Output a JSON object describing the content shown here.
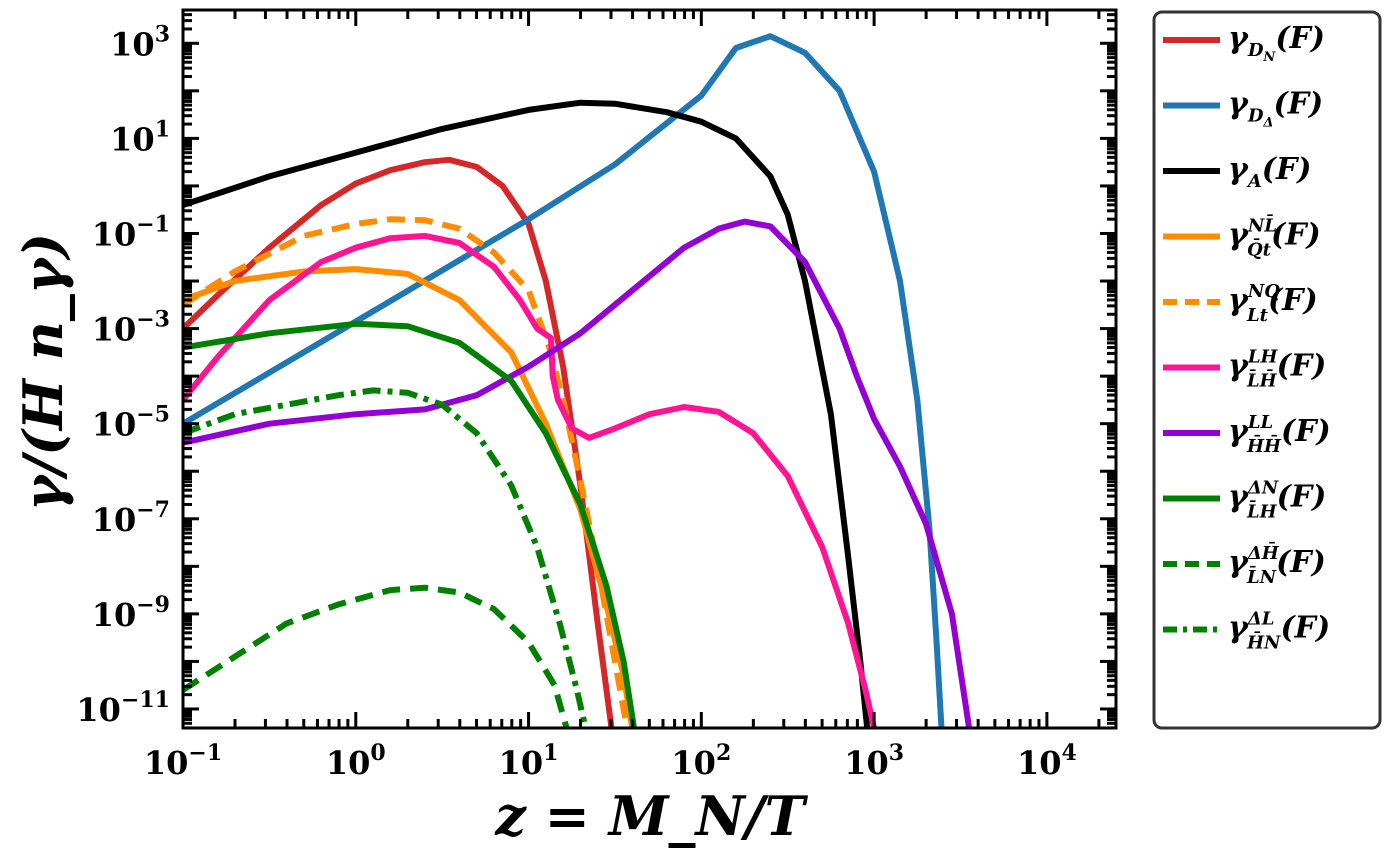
{
  "chart_data": {
    "type": "line",
    "title": "",
    "xlabel": "z = M_N/T",
    "ylabel": "γ/(H n_γ)",
    "xscale": "log",
    "yscale": "log",
    "xlim_log10": [
      -1,
      4.4
    ],
    "ylim_log10": [
      -11.4,
      3.7
    ],
    "x_ticks": [
      {
        "base": "10",
        "exp": "−1",
        "log10": -1
      },
      {
        "base": "10",
        "exp": "0",
        "log10": 0
      },
      {
        "base": "10",
        "exp": "1",
        "log10": 1
      },
      {
        "base": "10",
        "exp": "2",
        "log10": 2
      },
      {
        "base": "10",
        "exp": "3",
        "log10": 3
      },
      {
        "base": "10",
        "exp": "4",
        "log10": 4
      }
    ],
    "y_ticks": [
      {
        "base": "10",
        "exp": "−11",
        "log10": -11
      },
      {
        "base": "10",
        "exp": "−9",
        "log10": -9
      },
      {
        "base": "10",
        "exp": "−7",
        "log10": -7
      },
      {
        "base": "10",
        "exp": "−5",
        "log10": -5
      },
      {
        "base": "10",
        "exp": "−3",
        "log10": -3
      },
      {
        "base": "10",
        "exp": "−1",
        "log10": -1
      },
      {
        "base": "10",
        "exp": "1",
        "log10": 1
      },
      {
        "base": "10",
        "exp": "3",
        "log10": 3
      }
    ],
    "legend_position": "outside-right",
    "series": [
      {
        "name": "γ_{D_N}(F)",
        "label": {
          "base": "γ",
          "sup": "",
          "sub": "D",
          "subsub": "N",
          "tail": "(F)"
        },
        "color": "#d62728",
        "dash": "solid",
        "points": [
          [
            -1,
            -3
          ],
          [
            -0.8,
            -2.3
          ],
          [
            -0.5,
            -1.3
          ],
          [
            -0.2,
            -0.4
          ],
          [
            0,
            0.05
          ],
          [
            0.2,
            0.33
          ],
          [
            0.4,
            0.5
          ],
          [
            0.54,
            0.55
          ],
          [
            0.7,
            0.4
          ],
          [
            0.85,
            0
          ],
          [
            1,
            -0.8
          ],
          [
            1.1,
            -2
          ],
          [
            1.2,
            -3.8
          ],
          [
            1.3,
            -6.3
          ],
          [
            1.4,
            -9.2
          ],
          [
            1.48,
            -11.4
          ]
        ]
      },
      {
        "name": "γ_{D_Δ}(F)",
        "label": {
          "base": "γ",
          "sup": "",
          "sub": "D",
          "subsub": "Δ",
          "tail": "(F)"
        },
        "color": "#1f77b4",
        "dash": "solid",
        "points": [
          [
            -1,
            -5
          ],
          [
            0,
            -2.85
          ],
          [
            1,
            -0.7
          ],
          [
            1.5,
            0.45
          ],
          [
            2,
            1.9
          ],
          [
            2.2,
            2.9
          ],
          [
            2.4,
            3.15
          ],
          [
            2.6,
            2.8
          ],
          [
            2.8,
            2.0
          ],
          [
            3,
            0.3
          ],
          [
            3.15,
            -2
          ],
          [
            3.25,
            -4.5
          ],
          [
            3.32,
            -7.2
          ],
          [
            3.36,
            -9.5
          ],
          [
            3.39,
            -11.4
          ]
        ]
      },
      {
        "name": "γ_A(F)",
        "label": {
          "base": "γ",
          "sup": "",
          "sub": "A",
          "subsub": "",
          "tail": "(F)"
        },
        "color": "#000000",
        "dash": "solid",
        "points": [
          [
            -1,
            -0.4
          ],
          [
            -0.5,
            0.2
          ],
          [
            0,
            0.7
          ],
          [
            0.5,
            1.2
          ],
          [
            1,
            1.6
          ],
          [
            1.3,
            1.75
          ],
          [
            1.5,
            1.73
          ],
          [
            1.8,
            1.55
          ],
          [
            2,
            1.35
          ],
          [
            2.2,
            1.0
          ],
          [
            2.4,
            0.2
          ],
          [
            2.5,
            -0.6
          ],
          [
            2.6,
            -2
          ],
          [
            2.75,
            -4.8
          ],
          [
            2.85,
            -7.8
          ],
          [
            2.92,
            -10
          ],
          [
            2.96,
            -11.4
          ]
        ]
      },
      {
        "name": "γ^{NL̄}_{Q̄t}(F)",
        "label": {
          "base": "γ",
          "sup": "NL̄",
          "sub": "Q̄t",
          "subsub": "",
          "tail": "(F)"
        },
        "color": "#ff8c00",
        "dash": "solid",
        "points": [
          [
            -1,
            -2.4
          ],
          [
            -0.7,
            -2
          ],
          [
            -0.3,
            -1.8
          ],
          [
            0,
            -1.75
          ],
          [
            0.3,
            -1.85
          ],
          [
            0.6,
            -2.4
          ],
          [
            0.9,
            -3.5
          ],
          [
            1.1,
            -5
          ],
          [
            1.3,
            -6.8
          ],
          [
            1.45,
            -8.8
          ],
          [
            1.55,
            -10.3
          ],
          [
            1.6,
            -11.4
          ]
        ]
      },
      {
        "name": "γ^{NQ}_{Lt}(F)",
        "label": {
          "base": "γ",
          "sup": "NQ",
          "sub": "Lt",
          "subsub": "",
          "tail": "(F)"
        },
        "color": "#ff8c00",
        "dash": "dashed",
        "points": [
          [
            -1,
            -2.5
          ],
          [
            -0.7,
            -1.8
          ],
          [
            -0.3,
            -1.05
          ],
          [
            0,
            -0.8
          ],
          [
            0.2,
            -0.7
          ],
          [
            0.4,
            -0.72
          ],
          [
            0.6,
            -0.9
          ],
          [
            0.8,
            -1.4
          ],
          [
            1,
            -2.2
          ],
          [
            1.12,
            -3.4
          ],
          [
            1.2,
            -4.5
          ],
          [
            1.3,
            -6.2
          ],
          [
            1.4,
            -8
          ],
          [
            1.5,
            -10
          ],
          [
            1.57,
            -11.4
          ]
        ]
      },
      {
        "name": "γ^{LH}_{L̄H̄}(F)",
        "label": {
          "base": "γ",
          "sup": "LH",
          "sub": "L̄H̄",
          "subsub": "",
          "tail": "(F)"
        },
        "color": "#ff1493",
        "dash": "solid",
        "points": [
          [
            -1,
            -4.5
          ],
          [
            -0.8,
            -3.6
          ],
          [
            -0.5,
            -2.4
          ],
          [
            -0.2,
            -1.6
          ],
          [
            0,
            -1.3
          ],
          [
            0.2,
            -1.1
          ],
          [
            0.4,
            -1.05
          ],
          [
            0.6,
            -1.2
          ],
          [
            0.8,
            -1.7
          ],
          [
            0.95,
            -2.4
          ],
          [
            1.05,
            -3
          ],
          [
            1.13,
            -3.2
          ],
          [
            1.14,
            -4
          ],
          [
            1.17,
            -4.5
          ],
          [
            1.25,
            -5.1
          ],
          [
            1.35,
            -5.3
          ],
          [
            1.5,
            -5.1
          ],
          [
            1.7,
            -4.8
          ],
          [
            1.9,
            -4.65
          ],
          [
            2.1,
            -4.75
          ],
          [
            2.3,
            -5.2
          ],
          [
            2.5,
            -6.1
          ],
          [
            2.7,
            -7.6
          ],
          [
            2.85,
            -9.2
          ],
          [
            2.95,
            -10.6
          ],
          [
            3.0,
            -11.4
          ]
        ]
      },
      {
        "name": "γ^{LL}_{H̄H̄}(F)",
        "label": {
          "base": "γ",
          "sup": "LL",
          "sub": "H̄H̄",
          "subsub": "",
          "tail": "(F)"
        },
        "color": "#9400d3",
        "dash": "solid",
        "points": [
          [
            -1,
            -5.4
          ],
          [
            -0.5,
            -5
          ],
          [
            0,
            -4.8
          ],
          [
            0.4,
            -4.7
          ],
          [
            0.7,
            -4.4
          ],
          [
            1,
            -3.8
          ],
          [
            1.3,
            -3.1
          ],
          [
            1.6,
            -2.2
          ],
          [
            1.9,
            -1.3
          ],
          [
            2.1,
            -0.9
          ],
          [
            2.25,
            -0.75
          ],
          [
            2.4,
            -0.85
          ],
          [
            2.6,
            -1.6
          ],
          [
            2.8,
            -3
          ],
          [
            2.9,
            -4
          ],
          [
            3,
            -4.9
          ],
          [
            3.15,
            -5.9
          ],
          [
            3.3,
            -7.1
          ],
          [
            3.45,
            -9
          ],
          [
            3.55,
            -11.4
          ]
        ]
      },
      {
        "name": "γ^{ΔN}_{L̄H}(F)",
        "label": {
          "base": "γ",
          "sup": "ΔN",
          "sub": "L̄H",
          "subsub": "",
          "tail": "(F)"
        },
        "color": "#008000",
        "dash": "solid",
        "points": [
          [
            -1,
            -3.4
          ],
          [
            -0.5,
            -3.1
          ],
          [
            0,
            -2.9
          ],
          [
            0.3,
            -2.95
          ],
          [
            0.6,
            -3.3
          ],
          [
            0.9,
            -4.1
          ],
          [
            1.1,
            -5.2
          ],
          [
            1.3,
            -6.7
          ],
          [
            1.45,
            -8.4
          ],
          [
            1.55,
            -10
          ],
          [
            1.61,
            -11.4
          ]
        ]
      },
      {
        "name": "γ^{ΔH̄}_{L̄N}(F)",
        "label": {
          "base": "γ",
          "sup": "ΔH̄",
          "sub": "L̄N",
          "subsub": "",
          "tail": "(F)"
        },
        "color": "#008000",
        "dash": "dashed",
        "points": [
          [
            -1,
            -10.6
          ],
          [
            -0.7,
            -9.9
          ],
          [
            -0.4,
            -9.2
          ],
          [
            -0.1,
            -8.8
          ],
          [
            0.2,
            -8.5
          ],
          [
            0.4,
            -8.45
          ],
          [
            0.6,
            -8.55
          ],
          [
            0.8,
            -8.9
          ],
          [
            1,
            -9.6
          ],
          [
            1.15,
            -10.5
          ],
          [
            1.22,
            -11.4
          ]
        ]
      },
      {
        "name": "γ^{ΔL}_{H̄N}(F)",
        "label": {
          "base": "γ",
          "sup": "ΔL",
          "sub": "H̄N",
          "subsub": "",
          "tail": "(F)"
        },
        "color": "#008000",
        "dash": "dashdot",
        "points": [
          [
            -1,
            -5.2
          ],
          [
            -0.7,
            -4.8
          ],
          [
            -0.4,
            -4.6
          ],
          [
            -0.1,
            -4.4
          ],
          [
            0.1,
            -4.3
          ],
          [
            0.3,
            -4.35
          ],
          [
            0.5,
            -4.6
          ],
          [
            0.7,
            -5.2
          ],
          [
            0.9,
            -6.3
          ],
          [
            1.05,
            -7.6
          ],
          [
            1.18,
            -9.2
          ],
          [
            1.28,
            -10.6
          ],
          [
            1.33,
            -11.4
          ]
        ]
      }
    ]
  }
}
